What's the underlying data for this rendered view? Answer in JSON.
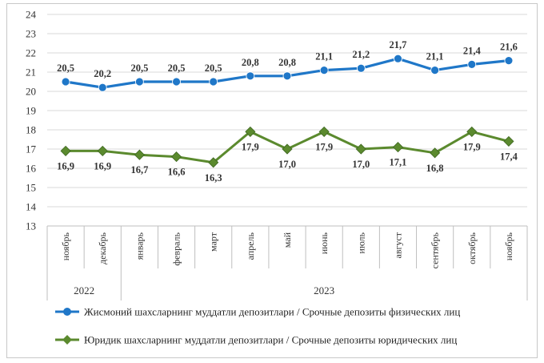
{
  "chart_data": {
    "type": "line",
    "categories": [
      "ноябрь",
      "декабрь",
      "январь",
      "февраль",
      "март",
      "апрель",
      "май",
      "июнь",
      "июль",
      "август",
      "сентябрь",
      "октябрь",
      "ноябрь"
    ],
    "years": [
      {
        "label": "2022",
        "from": 0,
        "to": 1
      },
      {
        "label": "2023",
        "from": 2,
        "to": 12
      }
    ],
    "ylim": [
      13,
      24
    ],
    "yticks": [
      13,
      14,
      15,
      16,
      17,
      18,
      19,
      20,
      21,
      22,
      23,
      24
    ],
    "grid": true,
    "legend_position": "bottom",
    "series": [
      {
        "name": "Жисмоний шахсларнинг муддатли депозитлари / Срочные депозиты физических лиц",
        "color": "#1f77c8",
        "marker": "circle",
        "values": [
          20.5,
          20.2,
          20.5,
          20.5,
          20.5,
          20.8,
          20.8,
          21.1,
          21.2,
          21.7,
          21.1,
          21.4,
          21.6
        ],
        "labels": [
          "20,5",
          "20,2",
          "20,5",
          "20,5",
          "20,5",
          "20,8",
          "20,8",
          "21,1",
          "21,2",
          "21,7",
          "21,1",
          "21,4",
          "21,6"
        ]
      },
      {
        "name": "Юридик шахсларнинг муддатли депозитлари / Срочные депозиты юридических лиц",
        "color": "#5b8a2e",
        "marker": "diamond",
        "values": [
          16.9,
          16.9,
          16.7,
          16.6,
          16.3,
          17.9,
          17.0,
          17.9,
          17.0,
          17.1,
          16.8,
          17.9,
          17.4
        ],
        "labels": [
          "16,9",
          "16,9",
          "16,7",
          "16,6",
          "16,3",
          "17,9",
          "17,0",
          "17,9",
          "17,0",
          "17,1",
          "16,8",
          "17,9",
          "17,4"
        ]
      }
    ]
  }
}
